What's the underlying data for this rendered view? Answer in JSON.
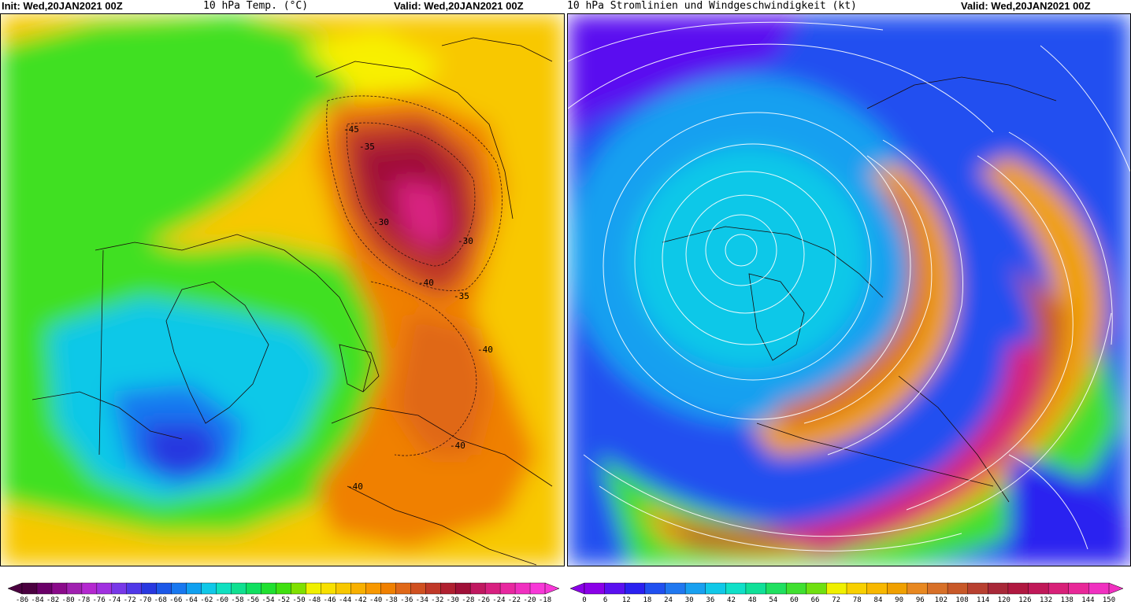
{
  "left_panel": {
    "init_label": "Init: Wed,20JAN2021 00Z",
    "title": "10 hPa Temp. (°C)",
    "valid_label": "Valid: Wed,20JAN2021 00Z",
    "contour_labels": [
      "-45",
      "-35",
      "-30",
      "-30",
      "-40",
      "-35",
      "-40",
      "-40",
      "-40"
    ],
    "colorbar": {
      "ticks": [
        "-86",
        "-84",
        "-82",
        "-80",
        "-78",
        "-76",
        "-74",
        "-72",
        "-70",
        "-68",
        "-66",
        "-64",
        "-62",
        "-60",
        "-58",
        "-56",
        "-54",
        "-52",
        "-50",
        "-48",
        "-46",
        "-44",
        "-42",
        "-40",
        "-38",
        "-36",
        "-34",
        "-32",
        "-30",
        "-28",
        "-26",
        "-24",
        "-22",
        "-20",
        "-18"
      ],
      "colors": [
        "#4b0040",
        "#6a0068",
        "#8a0a8a",
        "#a020b0",
        "#b428d0",
        "#a030e0",
        "#7838e8",
        "#5038e8",
        "#2838e0",
        "#1c58e8",
        "#1878f0",
        "#10a0f0",
        "#10c8e8",
        "#10e0c0",
        "#10e090",
        "#10e060",
        "#20e030",
        "#40e010",
        "#80e000",
        "#f0f000",
        "#f8e000",
        "#f8c800",
        "#f8b000",
        "#f89800",
        "#f08000",
        "#e06818",
        "#d05020",
        "#c03828",
        "#b02030",
        "#a01038",
        "#c01860",
        "#d82080",
        "#e828a0",
        "#f030c0",
        "#f838d8"
      ]
    }
  },
  "right_panel": {
    "title": "10 hPa Stromlinien und Windgeschwindigkeit (kt)",
    "valid_label": "Valid: Wed,20JAN2021 00Z",
    "colorbar": {
      "ticks": [
        "0",
        "6",
        "12",
        "18",
        "24",
        "30",
        "36",
        "42",
        "48",
        "54",
        "60",
        "66",
        "72",
        "78",
        "84",
        "90",
        "96",
        "102",
        "108",
        "114",
        "120",
        "126",
        "132",
        "138",
        "144",
        "150"
      ],
      "colors": [
        "#8a00e8",
        "#5a10f0",
        "#2a20f0",
        "#2050f0",
        "#2078f0",
        "#18a0f0",
        "#10c8e8",
        "#10e0c8",
        "#10e098",
        "#20e060",
        "#40e030",
        "#70e010",
        "#f0f000",
        "#f8d000",
        "#f8b800",
        "#f0a000",
        "#e88820",
        "#d87028",
        "#c85828",
        "#b84030",
        "#a82838",
        "#b01840",
        "#c01858",
        "#d82078",
        "#e82898",
        "#f030c0"
      ]
    }
  }
}
